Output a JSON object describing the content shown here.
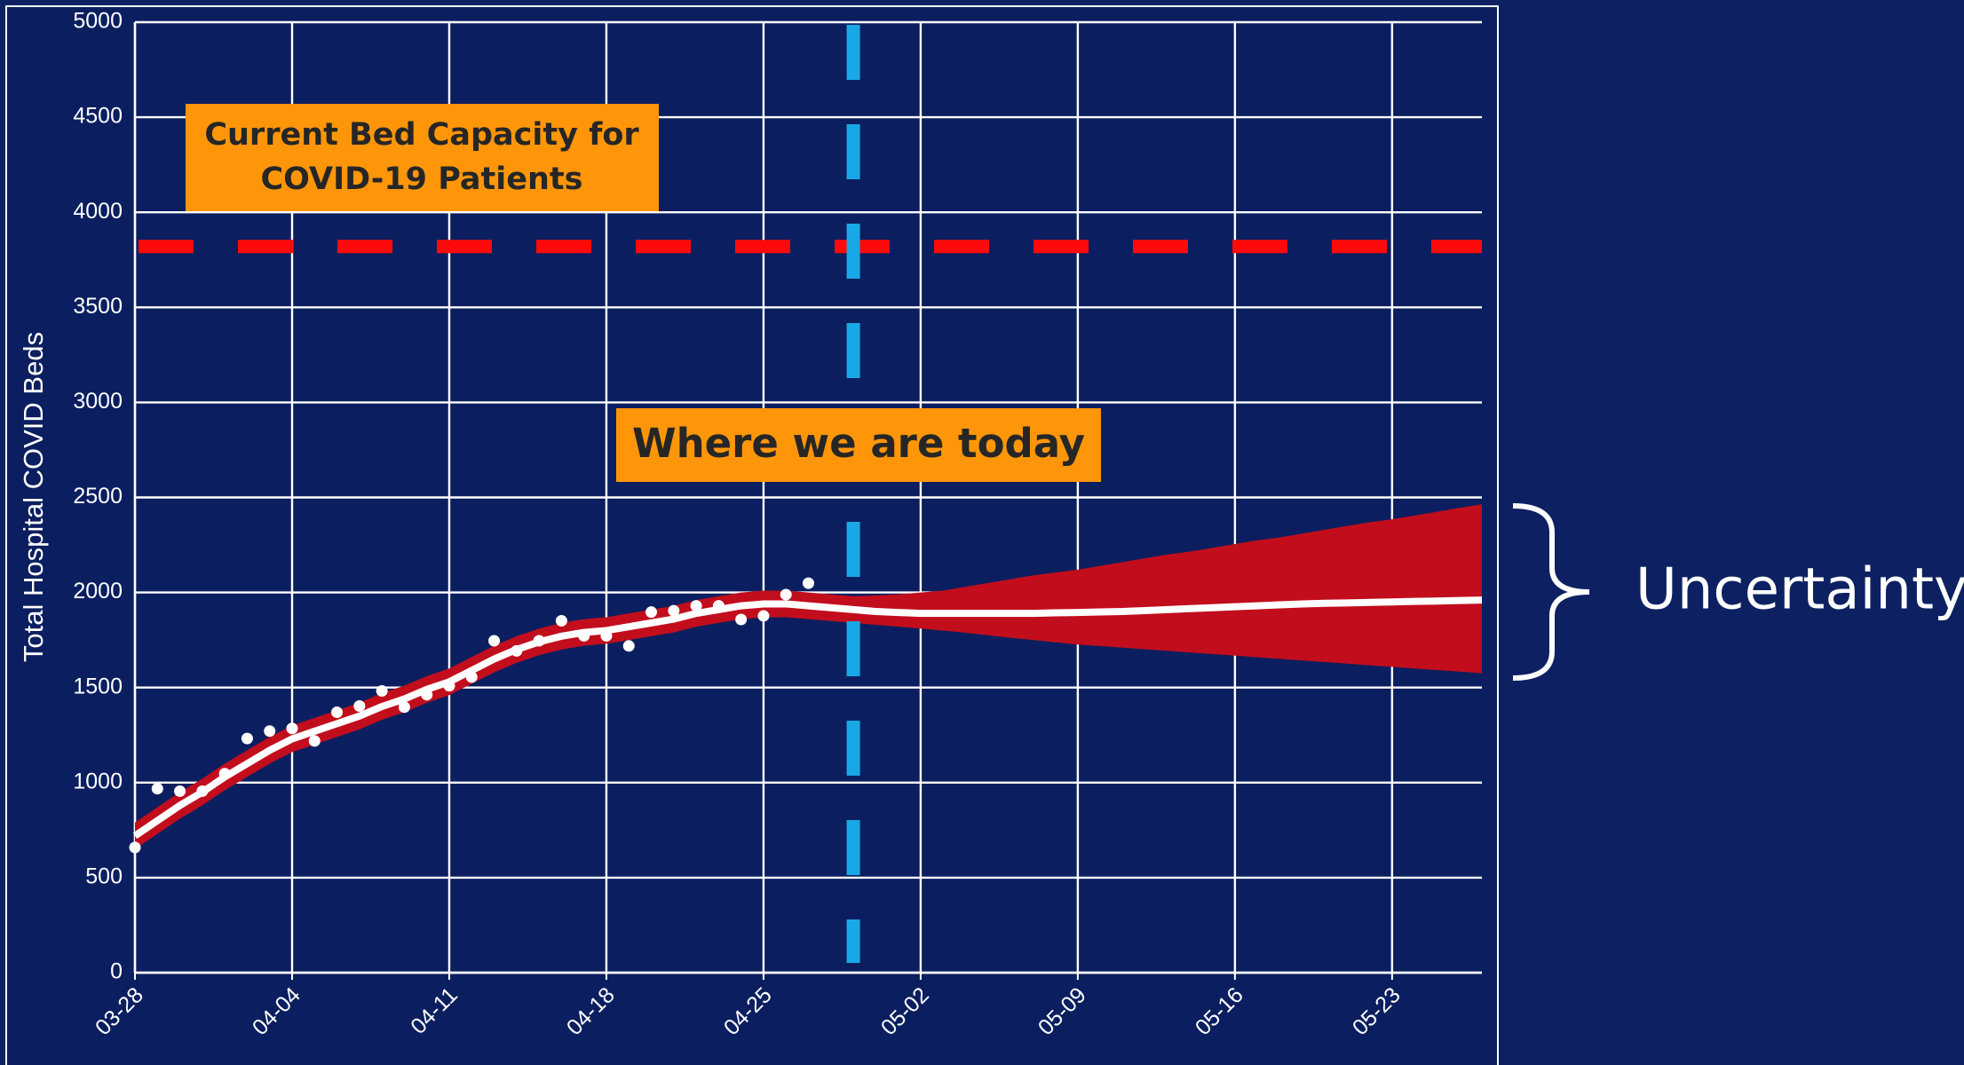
{
  "chart_data": {
    "type": "line",
    "ylabel": "Total Hospital COVID Beds",
    "categories": [
      "03-28",
      "03-29",
      "03-30",
      "03-31",
      "04-01",
      "04-02",
      "04-03",
      "04-04",
      "04-05",
      "04-06",
      "04-07",
      "04-08",
      "04-09",
      "04-10",
      "04-11",
      "04-12",
      "04-13",
      "04-14",
      "04-15",
      "04-16",
      "04-17",
      "04-18",
      "04-19",
      "04-20",
      "04-21",
      "04-22",
      "04-23",
      "04-24",
      "04-25",
      "04-26",
      "04-27",
      "04-28",
      "04-29",
      "04-30",
      "05-01",
      "05-02",
      "05-03",
      "05-04",
      "05-05",
      "05-06",
      "05-07",
      "05-08",
      "05-09",
      "05-10",
      "05-11",
      "05-12",
      "05-13",
      "05-14",
      "05-15",
      "05-16",
      "05-17",
      "05-18",
      "05-19",
      "05-20",
      "05-21",
      "05-22",
      "05-23",
      "05-24",
      "05-25",
      "05-26",
      "05-27"
    ],
    "xticks": [
      "03-28",
      "04-04",
      "04-11",
      "04-18",
      "04-25",
      "05-02",
      "05-09",
      "05-16",
      "05-23"
    ],
    "ylim": [
      0,
      5000
    ],
    "yticks": [
      0,
      500,
      1000,
      1500,
      2000,
      2500,
      3000,
      3500,
      4000,
      4500,
      5000
    ],
    "grid": true,
    "model": {
      "color": "#ffffff",
      "values": [
        720,
        800,
        880,
        950,
        1030,
        1100,
        1170,
        1230,
        1270,
        1310,
        1350,
        1400,
        1440,
        1490,
        1530,
        1590,
        1650,
        1700,
        1740,
        1770,
        1790,
        1800,
        1820,
        1840,
        1860,
        1890,
        1910,
        1930,
        1940,
        1940,
        1930,
        1920,
        1910,
        1900,
        1895,
        1890,
        1890,
        1890,
        1890,
        1890,
        1890,
        1893,
        1895,
        1898,
        1900,
        1905,
        1910,
        1915,
        1920,
        1925,
        1930,
        1935,
        1940,
        1943,
        1945,
        1948,
        1950,
        1953,
        1955,
        1958,
        1960
      ]
    },
    "band": {
      "color": "#c20d1c",
      "upper": [
        790,
        870,
        950,
        1020,
        1100,
        1170,
        1240,
        1300,
        1340,
        1380,
        1420,
        1470,
        1510,
        1560,
        1600,
        1660,
        1720,
        1770,
        1810,
        1840,
        1860,
        1870,
        1890,
        1910,
        1930,
        1960,
        1980,
        2000,
        2010,
        2010,
        2000,
        1990,
        1980,
        1985,
        1990,
        2000,
        2010,
        2030,
        2050,
        2070,
        2090,
        2105,
        2120,
        2140,
        2160,
        2180,
        2200,
        2215,
        2235,
        2255,
        2275,
        2290,
        2310,
        2330,
        2350,
        2370,
        2385,
        2405,
        2425,
        2445,
        2464
      ],
      "lower": [
        650,
        730,
        810,
        880,
        960,
        1030,
        1100,
        1160,
        1200,
        1240,
        1280,
        1330,
        1370,
        1420,
        1460,
        1520,
        1580,
        1630,
        1670,
        1700,
        1720,
        1730,
        1750,
        1770,
        1790,
        1820,
        1840,
        1860,
        1870,
        1870,
        1860,
        1850,
        1840,
        1830,
        1820,
        1810,
        1800,
        1788,
        1775,
        1762,
        1750,
        1738,
        1726,
        1718,
        1710,
        1701,
        1693,
        1684,
        1676,
        1668,
        1659,
        1651,
        1642,
        1634,
        1626,
        1617,
        1609,
        1600,
        1592,
        1584,
        1575
      ]
    },
    "observed": {
      "color": "#ffffff",
      "values": [
        659,
        968,
        955,
        955,
        1047,
        1232,
        1271,
        1285,
        1219,
        1370,
        1403,
        1482,
        1397,
        1462,
        1509,
        1555,
        1746,
        1693,
        1746,
        1851,
        1772,
        1772,
        1719,
        1897,
        1904,
        1930,
        1930,
        1858,
        1877,
        1989,
        2049,
        null,
        null,
        null,
        null,
        null,
        null,
        null,
        null,
        null,
        null,
        null,
        null,
        null,
        null,
        null,
        null,
        null,
        null,
        null,
        null,
        null,
        null,
        null,
        null,
        null,
        null,
        null,
        null,
        null,
        null
      ]
    },
    "capacity": {
      "value": 3820,
      "color": "#ff0a0a",
      "label": [
        "Current Bed Capacity for",
        "COVID-19 Patients"
      ]
    },
    "today": {
      "x": "04-29",
      "color": "#1aa7e6",
      "label": "Where we are today"
    },
    "uncertainty_label": "Uncertainty"
  }
}
